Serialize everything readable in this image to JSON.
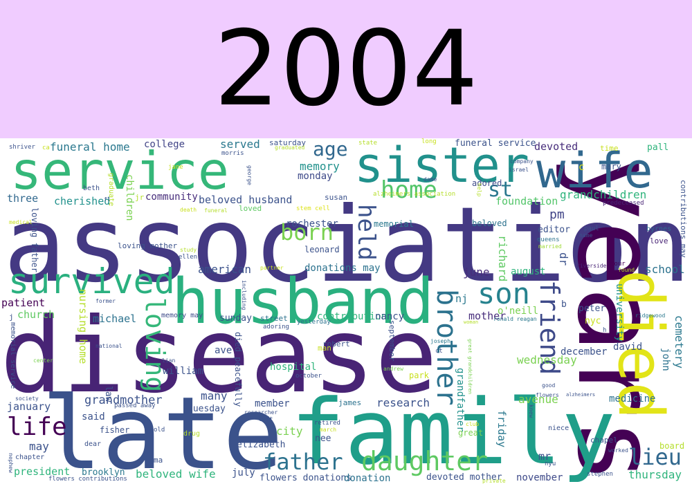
{
  "year": "2004",
  "words": [
    {
      "t": "disease",
      "c": "#482475"
    },
    {
      "t": "association",
      "c": "#443983"
    },
    {
      "t": "years",
      "c": "#440154"
    },
    {
      "t": "late",
      "c": "#3b528b"
    },
    {
      "t": "family",
      "c": "#1f9e89"
    },
    {
      "t": "husband",
      "c": "#2ab07f"
    },
    {
      "t": "service",
      "c": "#35b779"
    },
    {
      "t": "sister",
      "c": "#21918c"
    },
    {
      "t": "wife",
      "c": "#31688e"
    },
    {
      "t": "died",
      "c": "#e2e418"
    },
    {
      "t": "survived",
      "c": "#2ab07f"
    },
    {
      "t": "daughter",
      "c": "#5ec962"
    },
    {
      "t": "father",
      "c": "#2c728e"
    },
    {
      "t": "son",
      "c": "#26828e"
    },
    {
      "t": "home",
      "c": "#52c569"
    },
    {
      "t": "born",
      "c": "#7ad151"
    },
    {
      "t": "brother",
      "c": "#2c728e"
    },
    {
      "t": "loving",
      "c": "#35b779"
    },
    {
      "t": "held",
      "c": "#3b528b"
    },
    {
      "t": "life",
      "c": "#440154"
    },
    {
      "t": "friend",
      "c": "#3e4a89"
    },
    {
      "t": "lieu",
      "c": "#31688e"
    },
    {
      "t": "st",
      "c": "#2a788e"
    },
    {
      "t": "age",
      "c": "#31688e"
    },
    {
      "t": "grandmother",
      "c": "#3b528b"
    },
    {
      "t": "funeral home",
      "c": "#2a788e"
    },
    {
      "t": "college",
      "c": "#414487"
    },
    {
      "t": "served",
      "c": "#2a788e"
    },
    {
      "t": "memory",
      "c": "#21918c"
    },
    {
      "t": "monday",
      "c": "#3e4a89"
    },
    {
      "t": "three",
      "c": "#31688e"
    },
    {
      "t": "cherished",
      "c": "#21918c"
    },
    {
      "t": "community",
      "c": "#472d7b"
    },
    {
      "t": "beloved husband",
      "c": "#3b528b"
    },
    {
      "t": "loved",
      "c": "#5ec962"
    },
    {
      "t": "susan",
      "c": "#3b528b"
    },
    {
      "t": "alzheimers association",
      "c": "#b5de2b"
    },
    {
      "t": "stem cell",
      "c": "#dde318"
    },
    {
      "t": "funeral service",
      "c": "#3b528b"
    },
    {
      "t": "devoted",
      "c": "#472d7b"
    },
    {
      "t": "time",
      "c": "#c8e020"
    },
    {
      "t": "pall",
      "c": "#2fb47c"
    },
    {
      "t": "grandchildren",
      "c": "#2fb47c"
    },
    {
      "t": "foundation",
      "c": "#52c569"
    },
    {
      "t": "pm",
      "c": "#414487"
    },
    {
      "t": "adored",
      "c": "#3e4a89"
    },
    {
      "t": "c",
      "c": "#e5e419"
    },
    {
      "t": "mary",
      "c": "#3b528b"
    },
    {
      "t": "contributions may",
      "c": "#3b528b"
    },
    {
      "t": "predeceased",
      "c": "#482475"
    },
    {
      "t": "editor",
      "c": "#3b528b"
    },
    {
      "t": "beloved",
      "c": "#2c728e"
    },
    {
      "t": "paul",
      "c": "#3b528b"
    },
    {
      "t": "name",
      "c": "#3b528b"
    },
    {
      "t": "byrnes",
      "c": "#31688e"
    },
    {
      "t": "love",
      "c": "#482475"
    },
    {
      "t": "queens",
      "c": "#2c728e"
    },
    {
      "t": "married",
      "c": "#a0da39"
    },
    {
      "t": "rochester",
      "c": "#3b528b"
    },
    {
      "t": "memorial",
      "c": "#2a788e"
    },
    {
      "t": "leonard",
      "c": "#3b528b"
    },
    {
      "t": "american",
      "c": "#3b528b"
    },
    {
      "t": "donations may",
      "c": "#2c728e"
    },
    {
      "t": "june",
      "c": "#472d7b"
    },
    {
      "t": "august",
      "c": "#2fb47c"
    },
    {
      "t": "school",
      "c": "#2c728e"
    },
    {
      "t": "richard",
      "c": "#5ec962"
    },
    {
      "t": "dr",
      "c": "#3b528b"
    },
    {
      "t": "riverside",
      "c": "#482475"
    },
    {
      "t": "found",
      "c": "#b5de2b"
    },
    {
      "t": "four",
      "c": "#440154"
    },
    {
      "t": "patient",
      "c": "#440154"
    },
    {
      "t": "church",
      "c": "#5ec962"
    },
    {
      "t": "michael",
      "c": "#2c728e"
    },
    {
      "t": "memory may",
      "c": "#3e4a89"
    },
    {
      "t": "sunday",
      "c": "#3b528b"
    },
    {
      "t": "street",
      "c": "#2c728e"
    },
    {
      "t": "contributions",
      "c": "#2fb47c"
    },
    {
      "t": "nancy",
      "c": "#3b528b"
    },
    {
      "t": "nj",
      "c": "#2a788e"
    },
    {
      "t": "mother",
      "c": "#472d7b"
    },
    {
      "t": "o'neill",
      "c": "#7ad151"
    },
    {
      "t": "ronald reagan",
      "c": "#2a788e"
    },
    {
      "t": "b",
      "c": "#3b528b"
    },
    {
      "t": "peter",
      "c": "#3b528b"
    },
    {
      "t": "nyc",
      "c": "#c8e020"
    },
    {
      "t": "university",
      "c": "#21918c"
    },
    {
      "t": "ridgewood",
      "c": "#2a788e"
    },
    {
      "t": "cemetery",
      "c": "#2a788e"
    },
    {
      "t": "december",
      "c": "#3b528b"
    },
    {
      "t": "david",
      "c": "#3b528b"
    },
    {
      "t": "wednesday",
      "c": "#7ad151"
    },
    {
      "t": "john",
      "c": "#2c728e"
    },
    {
      "t": "medicine",
      "c": "#2c728e"
    },
    {
      "t": "avenue",
      "c": "#7ad151"
    },
    {
      "t": "alzheimers",
      "c": "#3b528b"
    },
    {
      "t": "good",
      "c": "#3b528b"
    },
    {
      "t": "flowers",
      "c": "#3b528b"
    },
    {
      "t": "knew",
      "c": "#3b528b"
    },
    {
      "t": "niece",
      "c": "#3b528b"
    },
    {
      "t": "chapel",
      "c": "#3b528b"
    },
    {
      "t": "worked",
      "c": "#3b528b"
    },
    {
      "t": "board",
      "c": "#b5de2b"
    },
    {
      "t": "mr",
      "c": "#3b528b"
    },
    {
      "t": "nyu",
      "c": "#3b528b"
    },
    {
      "t": "friday",
      "c": "#2a788e"
    },
    {
      "t": "thursday",
      "c": "#2fb47c"
    },
    {
      "t": "stephen",
      "c": "#3b528b"
    },
    {
      "t": "november",
      "c": "#3e4a89"
    },
    {
      "t": "devoted mother",
      "c": "#3b528b"
    },
    {
      "t": "private",
      "c": "#b5de2b"
    },
    {
      "t": "great",
      "c": "#7ad151"
    },
    {
      "t": "club",
      "c": "#c8e020"
    },
    {
      "t": "grandfather",
      "c": "#21918c"
    },
    {
      "t": "great grandchildren",
      "c": "#7ad151"
    },
    {
      "t": "september",
      "c": "#3b528b"
    },
    {
      "t": "research",
      "c": "#3b528b"
    },
    {
      "t": "hospital",
      "c": "#2fb47c"
    },
    {
      "t": "october",
      "c": "#3b528b"
    },
    {
      "t": "park",
      "c": "#c8e020"
    },
    {
      "t": "andrew",
      "c": "#7ad151"
    },
    {
      "t": "member",
      "c": "#3b528b"
    },
    {
      "t": "james",
      "c": "#2c728e"
    },
    {
      "t": "city",
      "c": "#7ad151"
    },
    {
      "t": "nee",
      "c": "#3b528b"
    },
    {
      "t": "retired",
      "c": "#3b528b"
    },
    {
      "t": "march",
      "c": "#c8e020"
    },
    {
      "t": "elizabeth",
      "c": "#3b528b"
    },
    {
      "t": "flowers donations",
      "c": "#3b528b"
    },
    {
      "t": "donation",
      "c": "#2c728e"
    },
    {
      "t": "left",
      "c": "#3b528b"
    },
    {
      "t": "researcher",
      "c": "#3b528b"
    },
    {
      "t": "july",
      "c": "#3b528b"
    },
    {
      "t": "died peacefully",
      "c": "#3b528b"
    },
    {
      "t": "robert",
      "c": "#3b528b"
    },
    {
      "t": "man",
      "c": "#c8e020"
    },
    {
      "t": "ct",
      "c": "#3b528b"
    },
    {
      "t": "joseph",
      "c": "#2a788e"
    },
    {
      "t": "yesterday",
      "c": "#2c728e"
    },
    {
      "t": "woman",
      "c": "#b5de2b"
    },
    {
      "t": "adoring",
      "c": "#3b528b"
    },
    {
      "t": "ave",
      "c": "#3b528b"
    },
    {
      "t": "many",
      "c": "#3b528b"
    },
    {
      "t": "tuesday",
      "c": "#3b528b"
    },
    {
      "t": "william",
      "c": "#3b528b"
    },
    {
      "t": "lian",
      "c": "#3b528b"
    },
    {
      "t": "law",
      "c": "#3b528b"
    },
    {
      "t": "nursing home",
      "c": "#b5de2b"
    },
    {
      "t": "former",
      "c": "#3b528b"
    },
    {
      "t": "national",
      "c": "#3b528b"
    },
    {
      "t": "january",
      "c": "#3b528b"
    },
    {
      "t": "may",
      "c": "#3b528b"
    },
    {
      "t": "president",
      "c": "#2fb47c"
    },
    {
      "t": "beloved wife",
      "c": "#2fb47c"
    },
    {
      "t": "chapter",
      "c": "#3b528b"
    },
    {
      "t": "ma",
      "c": "#3b528b"
    },
    {
      "t": "dear",
      "c": "#3b528b"
    },
    {
      "t": "old",
      "c": "#3b528b"
    },
    {
      "t": "drug",
      "c": "#b5de2b"
    },
    {
      "t": "fisher",
      "c": "#3b528b"
    },
    {
      "t": "said",
      "c": "#3b528b"
    },
    {
      "t": "passed away",
      "c": "#3b528b"
    },
    {
      "t": "brooklyn",
      "c": "#2a788e"
    },
    {
      "t": "flowers contributions",
      "c": "#3b528b"
    },
    {
      "t": "nephew",
      "c": "#3b528b"
    },
    {
      "t": "society",
      "c": "#3b528b"
    },
    {
      "t": "center",
      "c": "#7ad151"
    },
    {
      "t": "memorial service",
      "c": "#3b528b"
    },
    {
      "t": "j",
      "c": "#3b528b"
    },
    {
      "t": "children",
      "c": "#7ad151"
    },
    {
      "t": "jr",
      "c": "#b5de2b"
    },
    {
      "t": "loving father",
      "c": "#3b528b"
    },
    {
      "t": "loving mother",
      "c": "#3b528b"
    },
    {
      "t": "ellen",
      "c": "#3b528b"
    },
    {
      "t": "study",
      "c": "#b5de2b"
    },
    {
      "t": "partner",
      "c": "#c8e020"
    },
    {
      "t": "including",
      "c": "#3b528b"
    },
    {
      "t": "funeral",
      "c": "#b5de2b"
    },
    {
      "t": "death",
      "c": "#c8e020"
    },
    {
      "t": "medical",
      "c": "#c8e020"
    },
    {
      "t": "fl",
      "c": "#3b528b"
    },
    {
      "t": "beth",
      "c": "#3b528b"
    },
    {
      "t": "graduate",
      "c": "#b5de2b"
    },
    {
      "t": "jane",
      "c": "#c8e020"
    },
    {
      "t": "george",
      "c": "#3b528b"
    },
    {
      "t": "morris",
      "c": "#3b528b"
    },
    {
      "t": "saturday",
      "c": "#3b528b"
    },
    {
      "t": "graduated",
      "c": "#b5de2b"
    },
    {
      "t": "state",
      "c": "#b5de2b"
    },
    {
      "t": "long",
      "c": "#c8e020"
    },
    {
      "t": "dame",
      "c": "#3b528b"
    },
    {
      "t": "help",
      "c": "#b5de2b"
    },
    {
      "t": "company",
      "c": "#3b528b"
    },
    {
      "t": "israel",
      "c": "#3b528b"
    },
    {
      "t": "shriver",
      "c": "#3b528b"
    },
    {
      "t": "ca",
      "c": "#c8e020"
    },
    {
      "t": "h",
      "c": "#3b528b"
    },
    {
      "t": "",
      "c": "#ffffff"
    }
  ]
}
